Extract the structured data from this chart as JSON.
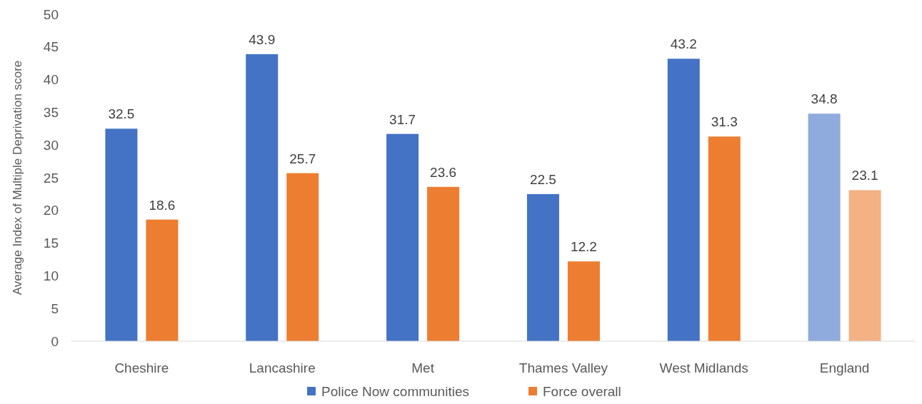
{
  "chart_data": {
    "type": "bar",
    "ylabel": "Average Index of Multiple Deprivation score",
    "categories": [
      "Cheshire",
      "Lancashire",
      "Met",
      "Thames Valley",
      "West Midlands",
      "England"
    ],
    "series": [
      {
        "name": "Police Now communities",
        "color": "#4472c4",
        "colors": [
          "#4472c4",
          "#4472c4",
          "#4472c4",
          "#4472c4",
          "#4472c4",
          "#8faadc"
        ],
        "values": [
          32.5,
          43.9,
          31.7,
          22.5,
          43.2,
          34.8
        ]
      },
      {
        "name": "Force overall",
        "color": "#ed7d31",
        "colors": [
          "#ed7d31",
          "#ed7d31",
          "#ed7d31",
          "#ed7d31",
          "#ed7d31",
          "#f4b183"
        ],
        "values": [
          18.6,
          25.7,
          23.6,
          12.2,
          31.3,
          23.1
        ]
      }
    ],
    "ylim": [
      0,
      50
    ],
    "yticks": [
      0,
      5,
      10,
      15,
      20,
      25,
      30,
      35,
      40,
      45,
      50
    ],
    "grid": false,
    "legend": "bottom",
    "data_labels": true
  }
}
